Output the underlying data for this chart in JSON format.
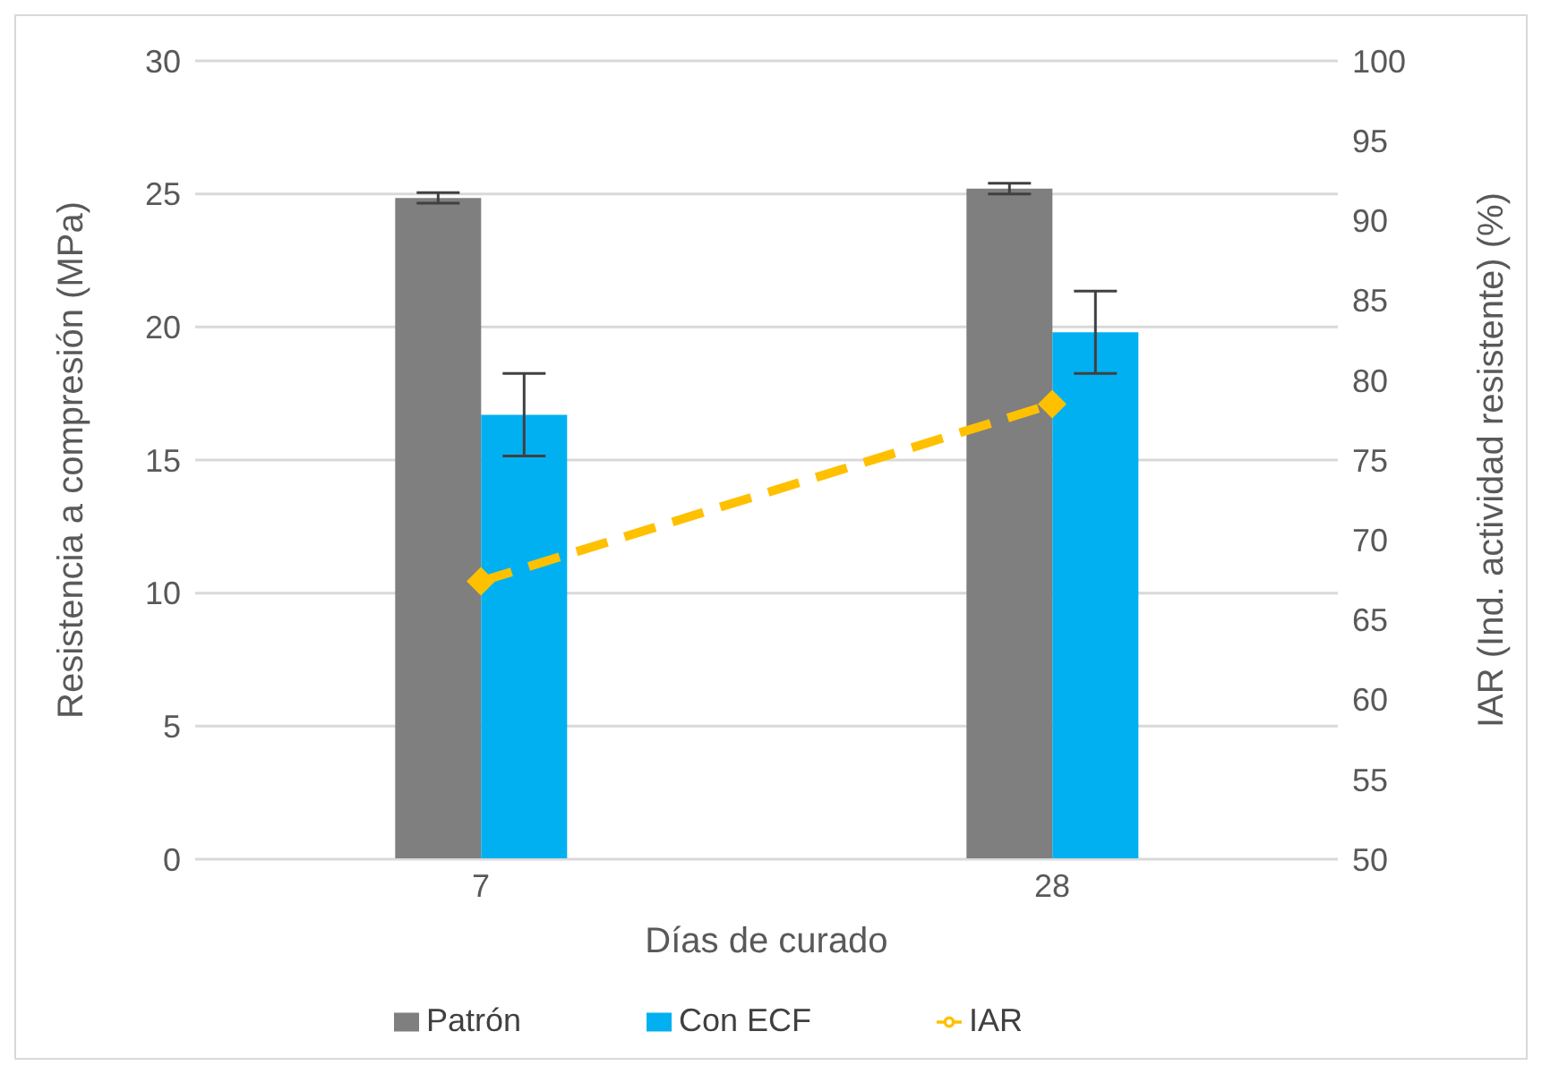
{
  "chart_data": {
    "type": "bar",
    "categories": [
      "7",
      "28"
    ],
    "xlabel": "Días de curado",
    "ylabel": "Resistencia a compresión (MPa)",
    "y2label": "IAR (Ind. actividad resistente) (%)",
    "series": [
      {
        "name": "Patrón",
        "color": "#7f7f7f",
        "values": [
          24.85,
          25.2
        ],
        "errors": [
          0.2,
          0.2
        ]
      },
      {
        "name": "Con ECF",
        "color": "#00b0f0",
        "values": [
          16.7,
          19.8
        ],
        "errors": [
          1.55,
          1.55
        ]
      },
      {
        "name": "IAR",
        "type": "line",
        "axis": "y2",
        "color": "#ffc000",
        "values": [
          67.4,
          78.5
        ],
        "marker": "diamond",
        "line_style": "dashed"
      }
    ],
    "ylim": [
      0,
      30
    ],
    "yticks": [
      0,
      5,
      10,
      15,
      20,
      25,
      30
    ],
    "y2lim": [
      50,
      100
    ],
    "y2ticks": [
      50,
      55,
      60,
      65,
      70,
      75,
      80,
      85,
      90,
      95,
      100
    ],
    "grid": "y",
    "legend": "bottom"
  }
}
